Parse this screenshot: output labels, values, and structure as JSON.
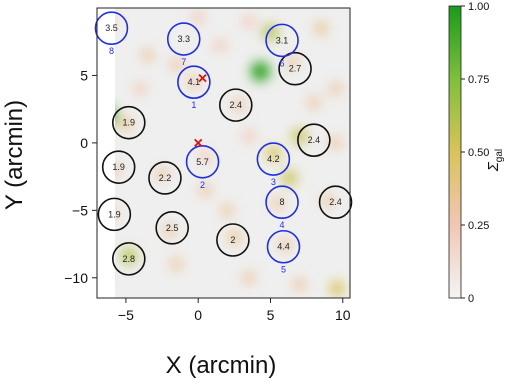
{
  "chart_data": {
    "type": "heatmap",
    "xlabel": "X (arcmin)",
    "ylabel": "Y (arcmin)",
    "xlim": [
      -7,
      10.5
    ],
    "ylim": [
      -11.5,
      10
    ],
    "x_ticks": [
      {
        "value": -5,
        "label": "−5"
      },
      {
        "value": 0,
        "label": "0"
      },
      {
        "value": 5,
        "label": "5"
      },
      {
        "value": 10,
        "label": "10"
      }
    ],
    "y_ticks": [
      {
        "value": 5,
        "label": "5"
      },
      {
        "value": 0,
        "label": "0"
      },
      {
        "value": -5,
        "label": "−5"
      },
      {
        "value": -10,
        "label": "−10"
      }
    ],
    "colorbar": {
      "label_main": "Σ",
      "label_sub": "gal",
      "range": [
        0,
        1
      ],
      "ticks": [
        {
          "value": 0,
          "label": "0"
        },
        {
          "value": 0.25,
          "label": "0.25"
        },
        {
          "value": 0.5,
          "label": "0.50"
        },
        {
          "value": 0.75,
          "label": "0.75"
        },
        {
          "value": 1,
          "label": "1.00"
        }
      ],
      "colors": [
        "#f4f4f4",
        "#f1c7b4",
        "#d9c35a",
        "#7fbf3c",
        "#1a9a1a"
      ]
    },
    "blue_circles": [
      {
        "x": -6.0,
        "y": 8.5,
        "value": "3.5",
        "id": "8"
      },
      {
        "x": -1.0,
        "y": 7.7,
        "value": "3.3",
        "id": "7"
      },
      {
        "x": -0.3,
        "y": 4.5,
        "value": "4.1",
        "id": "1"
      },
      {
        "x": 0.3,
        "y": -1.4,
        "value": "5.7",
        "id": "2"
      },
      {
        "x": 5.8,
        "y": 7.6,
        "value": "3.1",
        "id": "6"
      },
      {
        "x": 5.2,
        "y": -1.2,
        "value": "4.2",
        "id": "3"
      },
      {
        "x": 5.8,
        "y": -4.4,
        "value": "8",
        "id": "4"
      },
      {
        "x": 5.9,
        "y": -7.7,
        "value": "4.4",
        "id": "5"
      }
    ],
    "black_circles": [
      {
        "x": -4.8,
        "y": 1.5,
        "value": "1.9"
      },
      {
        "x": -5.5,
        "y": -1.8,
        "value": "1.9"
      },
      {
        "x": -2.3,
        "y": -2.6,
        "value": "2.2"
      },
      {
        "x": -5.8,
        "y": -5.3,
        "value": "1.9"
      },
      {
        "x": -1.8,
        "y": -6.3,
        "value": "2.5"
      },
      {
        "x": -4.8,
        "y": -8.6,
        "value": "2.8"
      },
      {
        "x": 2.6,
        "y": 2.8,
        "value": "2.4"
      },
      {
        "x": 6.7,
        "y": 5.5,
        "value": "2.7"
      },
      {
        "x": 8.0,
        "y": 0.2,
        "value": "2.4"
      },
      {
        "x": 9.5,
        "y": -4.4,
        "value": "2.4"
      },
      {
        "x": 2.4,
        "y": -7.2,
        "value": "2"
      }
    ],
    "markers": [
      {
        "x": 0.3,
        "y": 4.8,
        "symbol": "x"
      },
      {
        "x": 0.0,
        "y": 0.0,
        "symbol": "x"
      }
    ],
    "density_blobs": [
      {
        "x": -6.2,
        "y": 2.0,
        "level": 0.85
      },
      {
        "x": 4.3,
        "y": 5.3,
        "level": 0.95
      },
      {
        "x": 5.0,
        "y": 8.2,
        "level": 0.6
      },
      {
        "x": 6.3,
        "y": -2.6,
        "level": 0.55
      },
      {
        "x": 7.0,
        "y": 0.5,
        "level": 0.55
      },
      {
        "x": -4.8,
        "y": -8.4,
        "level": 0.6
      },
      {
        "x": 9.6,
        "y": -10.8,
        "level": 0.5
      },
      {
        "x": 5.2,
        "y": -0.8,
        "level": 0.5
      },
      {
        "x": -5.0,
        "y": 1.4,
        "level": 0.35
      },
      {
        "x": 2.8,
        "y": 2.8,
        "level": 0.3
      },
      {
        "x": -1.5,
        "y": 5.8,
        "level": 0.3
      },
      {
        "x": -3.5,
        "y": 6.5,
        "level": 0.3
      },
      {
        "x": 1.5,
        "y": 7.2,
        "level": 0.25
      },
      {
        "x": 8.5,
        "y": 8.5,
        "level": 0.35
      },
      {
        "x": 9.5,
        "y": 4.0,
        "level": 0.3
      },
      {
        "x": 8.0,
        "y": 3.0,
        "level": 0.3
      },
      {
        "x": -5.8,
        "y": -2.0,
        "level": 0.3
      },
      {
        "x": -2.5,
        "y": -2.3,
        "level": 0.3
      },
      {
        "x": 0.5,
        "y": -3.5,
        "level": 0.3
      },
      {
        "x": 2.0,
        "y": -5.0,
        "level": 0.3
      },
      {
        "x": -6.0,
        "y": -5.2,
        "level": 0.3
      },
      {
        "x": -2.0,
        "y": -6.5,
        "level": 0.3
      },
      {
        "x": 2.5,
        "y": -7.0,
        "level": 0.35
      },
      {
        "x": 5.5,
        "y": -4.5,
        "level": 0.3
      },
      {
        "x": 9.0,
        "y": -4.3,
        "level": 0.3
      },
      {
        "x": 6.0,
        "y": -7.6,
        "level": 0.3
      },
      {
        "x": -1.5,
        "y": -9.0,
        "level": 0.3
      },
      {
        "x": 3.5,
        "y": -10.0,
        "level": 0.3
      },
      {
        "x": 7.0,
        "y": -10.5,
        "level": 0.3
      },
      {
        "x": -6.5,
        "y": -9.8,
        "level": 0.25
      },
      {
        "x": 3.5,
        "y": 0.5,
        "level": 0.25
      },
      {
        "x": 9.5,
        "y": 0.0,
        "level": 0.3
      },
      {
        "x": -4.0,
        "y": 4.0,
        "level": 0.25
      },
      {
        "x": -6.2,
        "y": 9.0,
        "level": 0.3
      },
      {
        "x": 0.0,
        "y": 9.3,
        "level": 0.25
      },
      {
        "x": 3.5,
        "y": 9.0,
        "level": 0.25
      },
      {
        "x": 6.5,
        "y": 6.0,
        "level": 0.3
      },
      {
        "x": 0.5,
        "y": -1.0,
        "level": 0.25
      },
      {
        "x": -0.3,
        "y": 4.5,
        "level": 0.3
      }
    ]
  }
}
